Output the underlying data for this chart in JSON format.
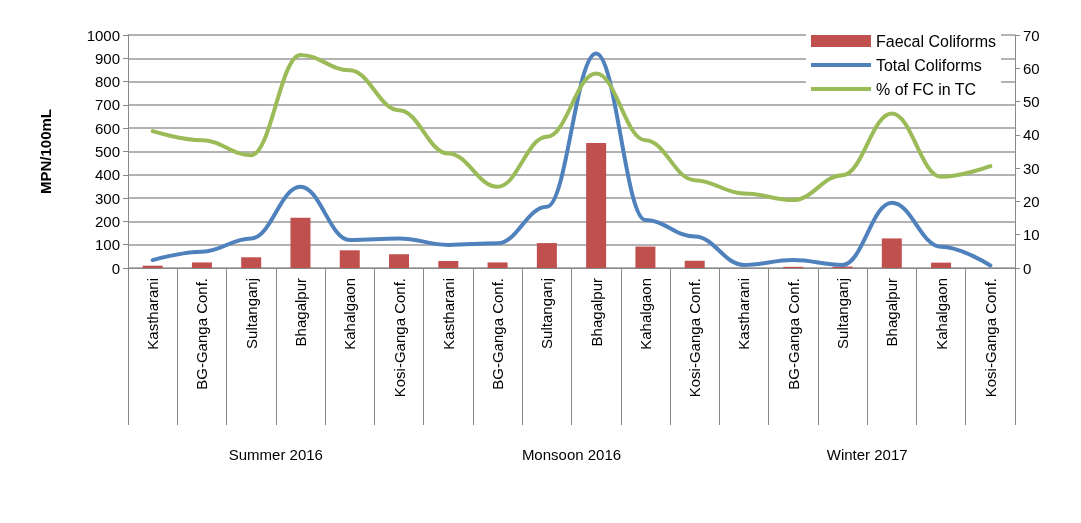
{
  "chart_data": {
    "type": "bar",
    "ylabel": "MPN/100mL",
    "categories": [
      "Kastharani",
      "BG-Ganga Conf.",
      "Sultanganj",
      "Bhagalpur",
      "Kahalgaon",
      "Kosi-Ganga Conf.",
      "Kastharani",
      "BG-Ganga Conf.",
      "Sultanganj",
      "Bhagalpur",
      "Kahalgaon",
      "Kosi-Ganga Conf.",
      "Kastharani",
      "BG-Ganga Conf.",
      "Sultanganj",
      "Bhagalpur",
      "Kahalgaon",
      "Kosi-Ganga Conf."
    ],
    "annotations": [
      "Summer 2016",
      "Monsoon 2016",
      "Winter 2017"
    ],
    "series": [
      {
        "name": "Faecal Coliforms",
        "color": "#c0504d",
        "values": [
          10,
          24,
          46,
          216,
          76,
          59,
          30,
          24,
          107,
          536,
          92,
          31,
          null,
          5,
          6,
          127,
          23,
          0
        ]
      },
      {
        "name": "Total Coliforms",
        "type": "line",
        "color": "#4f81bd",
        "values": [
          34,
          70,
          127,
          349,
          120,
          127,
          99,
          106,
          263,
          921,
          206,
          135,
          13,
          34,
          13,
          280,
          91,
          11
        ]
      },
      {
        "name": "% of FC in TC",
        "type": "line",
        "axis": "y2",
        "color": "#9bbb59",
        "values": [
          41.1,
          38.4,
          33.9,
          64,
          59.4,
          47.4,
          34.4,
          24.4,
          39.4,
          58.4,
          38.4,
          26.4,
          22.4,
          20.4,
          27.9,
          46.4,
          27.4,
          30.6
        ]
      }
    ],
    "ylim": [
      0,
      1000
    ],
    "yticks": [
      0,
      100,
      200,
      300,
      400,
      500,
      600,
      700,
      800,
      900,
      1000
    ],
    "y2lim": [
      0,
      70
    ],
    "y2ticks": [
      0,
      10,
      20,
      30,
      40,
      50,
      60,
      70
    ],
    "grid": "y",
    "legend": "top right",
    "marker": "none",
    "line_style": "solid"
  }
}
